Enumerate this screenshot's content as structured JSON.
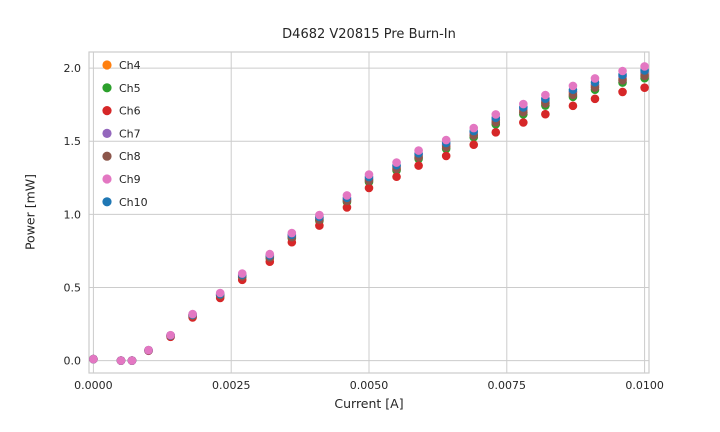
{
  "figure": {
    "background": "#ffffff",
    "grid_color": "#cccccc",
    "spine_color": "#cccccc",
    "text_color": "#262626"
  },
  "chart_data": {
    "type": "scatter",
    "title": "D4682 V20815 Pre Burn-In",
    "xlabel": "Current [A]",
    "ylabel": "Power [mW]",
    "xlim": [
      -8e-05,
      0.01008
    ],
    "ylim": [
      -0.085,
      2.11
    ],
    "grid": true,
    "legend_position": "upper-left",
    "xticks": {
      "values": [
        0.0,
        0.0025,
        0.005,
        0.0075,
        0.01
      ],
      "labels": [
        "0.0000",
        "0.0025",
        "0.0050",
        "0.0075",
        "0.0100"
      ]
    },
    "yticks": {
      "values": [
        0.0,
        0.5,
        1.0,
        1.5,
        2.0
      ],
      "labels": [
        "0.0",
        "0.5",
        "1.0",
        "1.5",
        "2.0"
      ]
    },
    "x": [
      0.0,
      0.0005,
      0.0007,
      0.001,
      0.0014,
      0.0018,
      0.0023,
      0.0027,
      0.0032,
      0.0036,
      0.0041,
      0.0046,
      0.005,
      0.0055,
      0.0059,
      0.0064,
      0.0069,
      0.0073,
      0.0078,
      0.0082,
      0.0087,
      0.0091,
      0.0096,
      0.01
    ],
    "series": [
      {
        "name": "Ch4",
        "color": "#ff7f0e",
        "values": [
          0.01,
          0.0,
          0.0,
          0.07,
          0.17,
          0.31,
          0.45,
          0.58,
          0.71,
          0.85,
          0.97,
          1.1,
          1.24,
          1.32,
          1.4,
          1.47,
          1.55,
          1.64,
          1.71,
          1.77,
          1.83,
          1.88,
          1.93,
          1.96
        ]
      },
      {
        "name": "Ch5",
        "color": "#2ca02c",
        "values": [
          0.01,
          0.0,
          0.0,
          0.069,
          0.167,
          0.305,
          0.443,
          0.571,
          0.699,
          0.837,
          0.955,
          1.084,
          1.221,
          1.3,
          1.379,
          1.448,
          1.527,
          1.615,
          1.684,
          1.744,
          1.803,
          1.852,
          1.901,
          1.931
        ]
      },
      {
        "name": "Ch6",
        "color": "#d62728",
        "values": [
          0.01,
          0.0,
          0.0,
          0.067,
          0.162,
          0.295,
          0.428,
          0.552,
          0.676,
          0.809,
          0.923,
          1.047,
          1.18,
          1.257,
          1.333,
          1.399,
          1.476,
          1.561,
          1.628,
          1.685,
          1.742,
          1.79,
          1.837,
          1.866
        ]
      },
      {
        "name": "Ch7",
        "color": "#9467bd",
        "values": [
          0.01,
          0.0,
          0.0,
          0.07,
          0.171,
          0.312,
          0.452,
          0.583,
          0.714,
          0.854,
          0.975,
          1.106,
          1.246,
          1.327,
          1.407,
          1.477,
          1.558,
          1.648,
          1.719,
          1.779,
          1.839,
          1.889,
          1.94,
          1.97
        ]
      },
      {
        "name": "Ch8",
        "color": "#8c564b",
        "values": [
          0.01,
          0.0,
          0.0,
          0.07,
          0.169,
          0.308,
          0.447,
          0.576,
          0.705,
          0.844,
          0.963,
          1.092,
          1.231,
          1.311,
          1.39,
          1.46,
          1.539,
          1.629,
          1.698,
          1.758,
          1.817,
          1.867,
          1.916,
          1.946
        ]
      },
      {
        "name": "Ch9",
        "color": "#e377c2",
        "values": [
          0.01,
          0.0,
          0.0,
          0.072,
          0.174,
          0.318,
          0.462,
          0.595,
          0.728,
          0.872,
          0.995,
          1.129,
          1.272,
          1.354,
          1.436,
          1.508,
          1.59,
          1.683,
          1.754,
          1.816,
          1.878,
          1.929,
          1.98,
          2.011
        ]
      },
      {
        "name": "Ch10",
        "color": "#1f77b4",
        "values": [
          0.01,
          0.0,
          0.0,
          0.071,
          0.172,
          0.314,
          0.455,
          0.587,
          0.719,
          0.86,
          0.982,
          1.113,
          1.255,
          1.336,
          1.417,
          1.488,
          1.569,
          1.66,
          1.731,
          1.791,
          1.852,
          1.903,
          1.953,
          1.984
        ]
      }
    ]
  }
}
